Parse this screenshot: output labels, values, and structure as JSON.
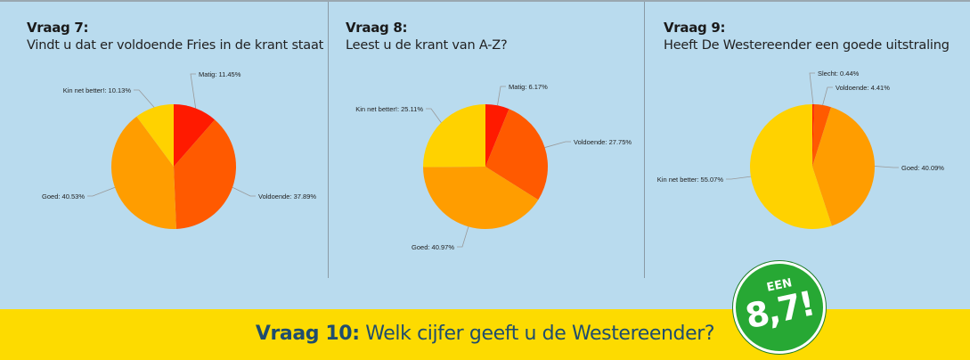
{
  "questions": [
    {
      "number": "Vraag 7:",
      "text": "Vindt u dat er voldoende Fries in de krant staat"
    },
    {
      "number": "Vraag 8:",
      "text": "Leest u de krant van A-Z?"
    },
    {
      "number": "Vraag 9:",
      "text": "Heeft De Westereender een goede uitstraling"
    }
  ],
  "chart_data": [
    {
      "type": "pie",
      "slices": [
        {
          "label": "Matig: 11.45%",
          "value": 11.45,
          "color": "#ff1a00"
        },
        {
          "label": "Voldoende: 37.89%",
          "value": 37.89,
          "color": "#ff5a00"
        },
        {
          "label": "Goed: 40.53%",
          "value": 40.53,
          "color": "#ff9d00"
        },
        {
          "label": "Kin net better!: 10.13%",
          "value": 10.13,
          "color": "#ffd200"
        }
      ]
    },
    {
      "type": "pie",
      "slices": [
        {
          "label": "Matig: 6.17%",
          "value": 6.17,
          "color": "#ff1a00"
        },
        {
          "label": "Voldoende: 27.75%",
          "value": 27.75,
          "color": "#ff5a00"
        },
        {
          "label": "Goed: 40.97%",
          "value": 40.97,
          "color": "#ff9d00"
        },
        {
          "label": "Kin net better!: 25.11%",
          "value": 25.11,
          "color": "#ffd200"
        }
      ]
    },
    {
      "type": "pie",
      "slices": [
        {
          "label": "Slecht: 0.44%",
          "value": 0.44,
          "color": "#ff1a00"
        },
        {
          "label": "Voldoende: 4.41%",
          "value": 4.41,
          "color": "#ff5a00"
        },
        {
          "label": "Goed: 40.09%",
          "value": 40.09,
          "color": "#ff9d00"
        },
        {
          "label": "Kin net better: 55.07%",
          "value": 55.07,
          "color": "#ffd200"
        }
      ]
    }
  ],
  "banner": {
    "number": "Vraag 10:",
    "text": " Welk cijfer geeft u de Westereender?"
  },
  "badge": {
    "top": "EEN",
    "score": "8,7!"
  }
}
